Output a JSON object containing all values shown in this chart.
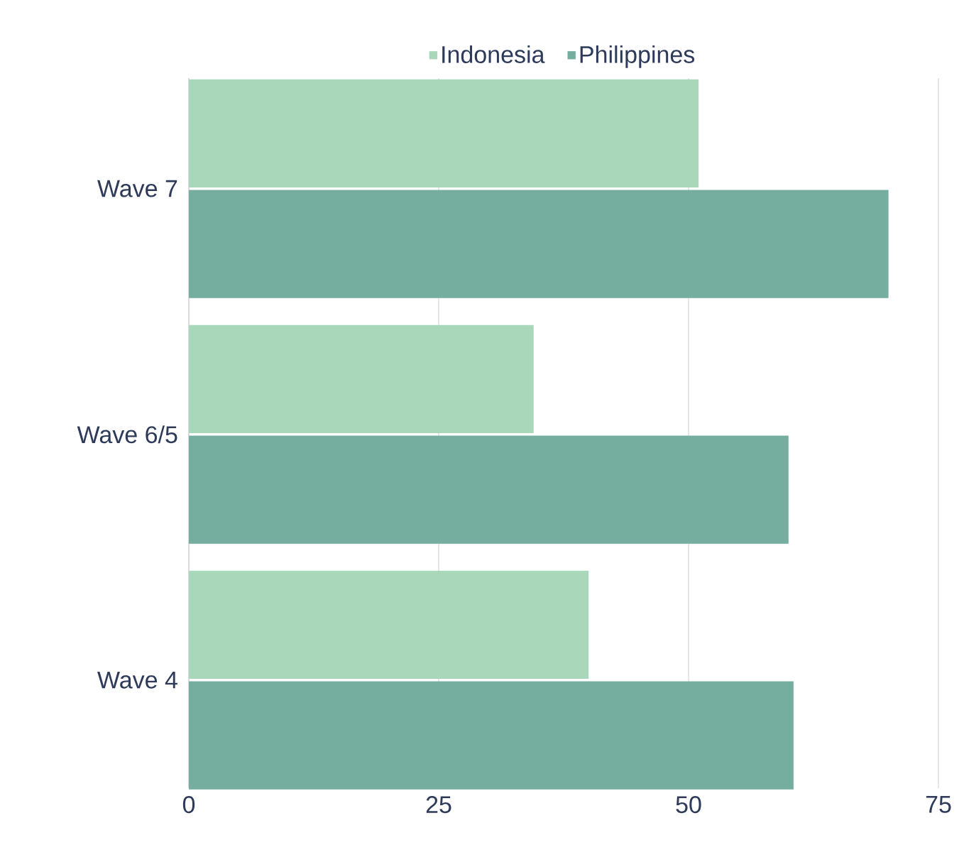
{
  "chart_data": {
    "type": "bar",
    "orientation": "horizontal",
    "categories": [
      "Wave 7",
      "Wave 6/5",
      "Wave 4"
    ],
    "series": [
      {
        "name": "Indonesia",
        "color": "#a9d7b9",
        "values": [
          51,
          34.5,
          40
        ]
      },
      {
        "name": "Philippines",
        "color": "#75ad9f",
        "values": [
          70,
          60,
          60.5
        ]
      }
    ],
    "xlim": [
      0,
      75
    ],
    "xticks": [
      0,
      25,
      50,
      75
    ],
    "grid": "x",
    "legend": "top"
  }
}
